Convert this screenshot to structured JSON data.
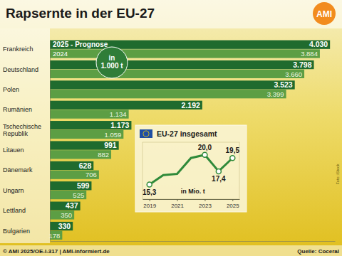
{
  "header": {
    "logo": "AMI"
  },
  "chart_data": [
    {
      "type": "bar",
      "orientation": "horizontal",
      "title": "Rapsernte in der EU-27",
      "annotations": [
        "in 1.000 t"
      ],
      "categories": [
        "Frankreich",
        "Deutschland",
        "Polen",
        "Rumänien",
        "Tschechische Republik",
        "Litauen",
        "Dänemark",
        "Ungarn",
        "Lettland",
        "Bulgarien"
      ],
      "series": [
        {
          "name": "2025 - Prognose",
          "color": "#1f6b2e",
          "values": [
            4030,
            3798,
            3523,
            2192,
            1173,
            991,
            628,
            599,
            437,
            330
          ],
          "value_labels": [
            "4.030",
            "3.798",
            "3.523",
            "2.192",
            "1.173",
            "991",
            "628",
            "599",
            "437",
            "330"
          ]
        },
        {
          "name": "2024",
          "color": "#5c9e44",
          "values": [
            3884,
            3660,
            3399,
            1134,
            1059,
            882,
            706,
            525,
            350,
            178
          ],
          "value_labels": [
            "3.884",
            "3.660",
            "3.399",
            "1.134",
            "1.059",
            "882",
            "706",
            "525",
            "350",
            "178"
          ]
        }
      ],
      "xlim": [
        0,
        4100
      ],
      "data_labels": true,
      "tick_labels": "y",
      "legend": "top-left"
    },
    {
      "type": "line",
      "title": "EU-27 insgesamt",
      "annotations": [
        "in Mio. t"
      ],
      "x": [
        2019,
        2020,
        2021,
        2022,
        2023,
        2024,
        2025
      ],
      "values": [
        15.3,
        16.8,
        17.0,
        19.5,
        20.0,
        17.4,
        19.5
      ],
      "value_labels": [
        "15,3",
        null,
        null,
        null,
        "20,0",
        "17,4",
        "19,5"
      ],
      "color": "#2f8a3a",
      "marker": "circle",
      "xlim": [
        2018.5,
        2025.5
      ],
      "xticks": [
        2019,
        2021,
        2023,
        2025
      ],
      "ylim": [
        13,
        22
      ],
      "tick_labels": "x",
      "data_labels": true
    }
  ],
  "footer": {
    "copyright": "© AMI 2025/OE-I-317 | AMI-informiert.de",
    "source": "Quelle: Coceral",
    "photo": "Foto: iStock"
  }
}
